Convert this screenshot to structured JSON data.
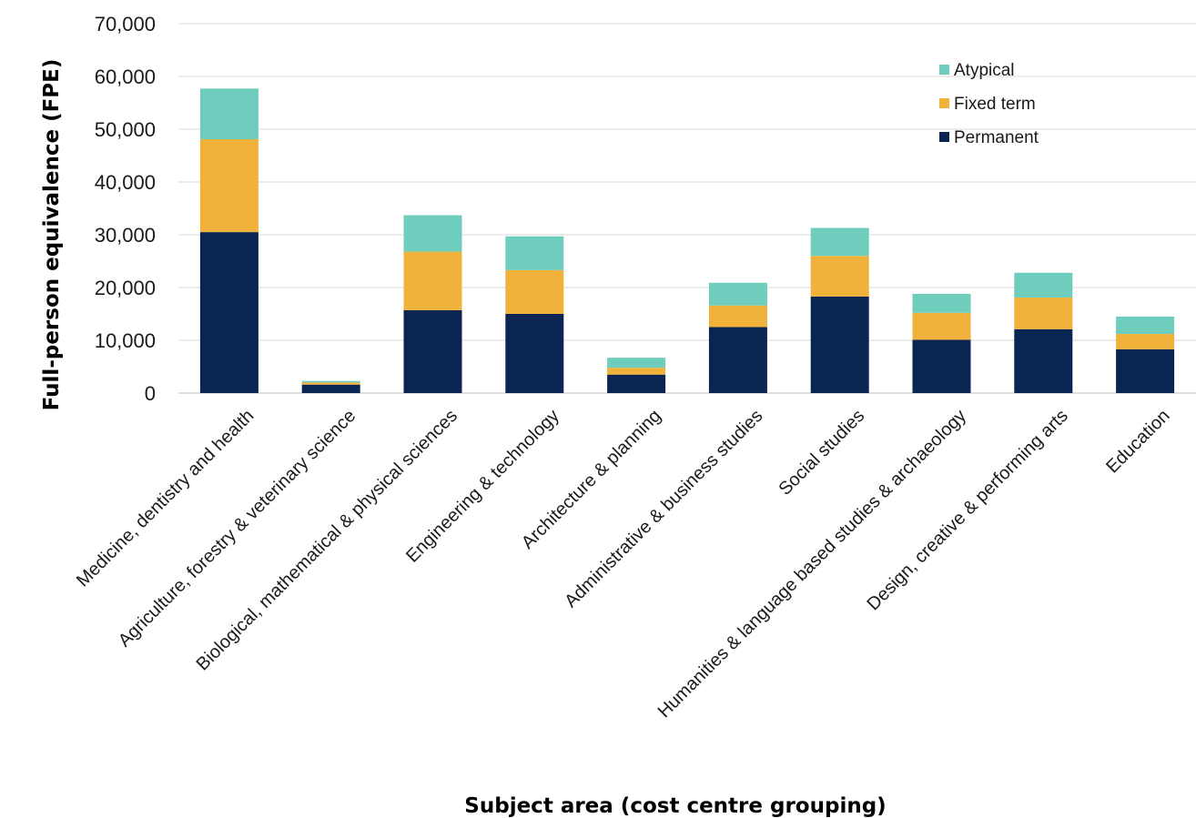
{
  "chart_data": {
    "type": "bar",
    "stacked": true,
    "xlabel": "Subject area (cost centre grouping)",
    "ylabel": "Full-person equivalence (FPE)",
    "ylim": [
      0,
      70000
    ],
    "yticks": [
      0,
      10000,
      20000,
      30000,
      40000,
      50000,
      60000,
      70000
    ],
    "ytick_labels": [
      "0",
      "10,000",
      "20,000",
      "30,000",
      "40,000",
      "50,000",
      "60,000",
      "70,000"
    ],
    "grid": true,
    "legend_position": "top-right",
    "categories": [
      "Medicine, dentistry and health",
      "Agriculture, forestry & veterinary science",
      "Biological, mathematical & physical sciences",
      "Engineering & technology",
      "Architecture & planning",
      "Administrative & business studies",
      "Social studies",
      "Humanities & language based studies & archaeology",
      "Design, creative & performing arts",
      "Education"
    ],
    "highlighted_category": "Administrative & business studies",
    "highlight_color": "#c0504d",
    "series": [
      {
        "name": "Permanent",
        "color": "#0b2552",
        "values": [
          30500,
          1600,
          15700,
          15000,
          3500,
          12500,
          18300,
          10100,
          12100,
          8300
        ]
      },
      {
        "name": "Fixed term",
        "color": "#f0b23a",
        "values": [
          17600,
          400,
          11100,
          8300,
          1300,
          4100,
          7700,
          5100,
          6000,
          2900
        ]
      },
      {
        "name": "Atypical",
        "color": "#6fcdbd",
        "values": [
          9600,
          300,
          6900,
          6400,
          1900,
          4300,
          5300,
          3600,
          4700,
          3300
        ]
      }
    ],
    "legend_order": [
      "Atypical",
      "Fixed term",
      "Permanent"
    ]
  }
}
